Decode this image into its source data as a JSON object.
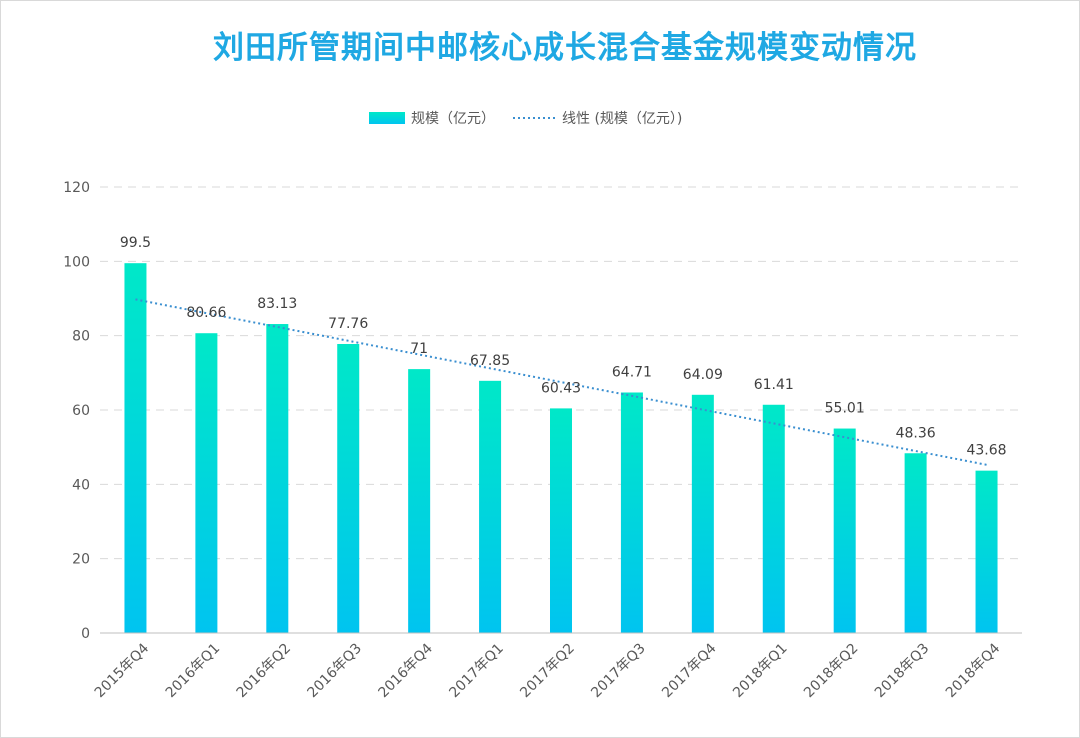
{
  "chart_data": {
    "type": "bar",
    "title": "刘田所管期间中邮核心成长混合基金规模变动情况",
    "categories": [
      "2015年Q4",
      "2016年Q1",
      "2016年Q2",
      "2016年Q3",
      "2016年Q4",
      "2017年Q1",
      "2017年Q2",
      "2017年Q3",
      "2017年Q4",
      "2018年Q1",
      "2018年Q2",
      "2018年Q3",
      "2018年Q4"
    ],
    "series": [
      {
        "name": "规模（亿元）",
        "values": [
          99.5,
          80.66,
          83.13,
          77.76,
          71,
          67.85,
          60.43,
          64.71,
          64.09,
          61.41,
          55.01,
          48.36,
          43.68
        ]
      }
    ],
    "data_labels": [
      "99.5",
      "80.66",
      "83.13",
      "77.76",
      "71",
      "67.85",
      "60.43",
      "64.71",
      "64.09",
      "61.41",
      "55.01",
      "48.36",
      "43.68"
    ],
    "trendline": {
      "name": "线性 (规模（亿元）)",
      "type": "linear"
    },
    "ylim": [
      0,
      120
    ],
    "yticks": [
      "0",
      "20",
      "40",
      "60",
      "80",
      "100",
      "120"
    ],
    "grid": true,
    "legend_position": "top",
    "colors": {
      "bar_top": "#00e8c8",
      "bar_bottom": "#00c4f0",
      "trend": "#3a8fd0",
      "title": "#1fa8e3"
    }
  }
}
